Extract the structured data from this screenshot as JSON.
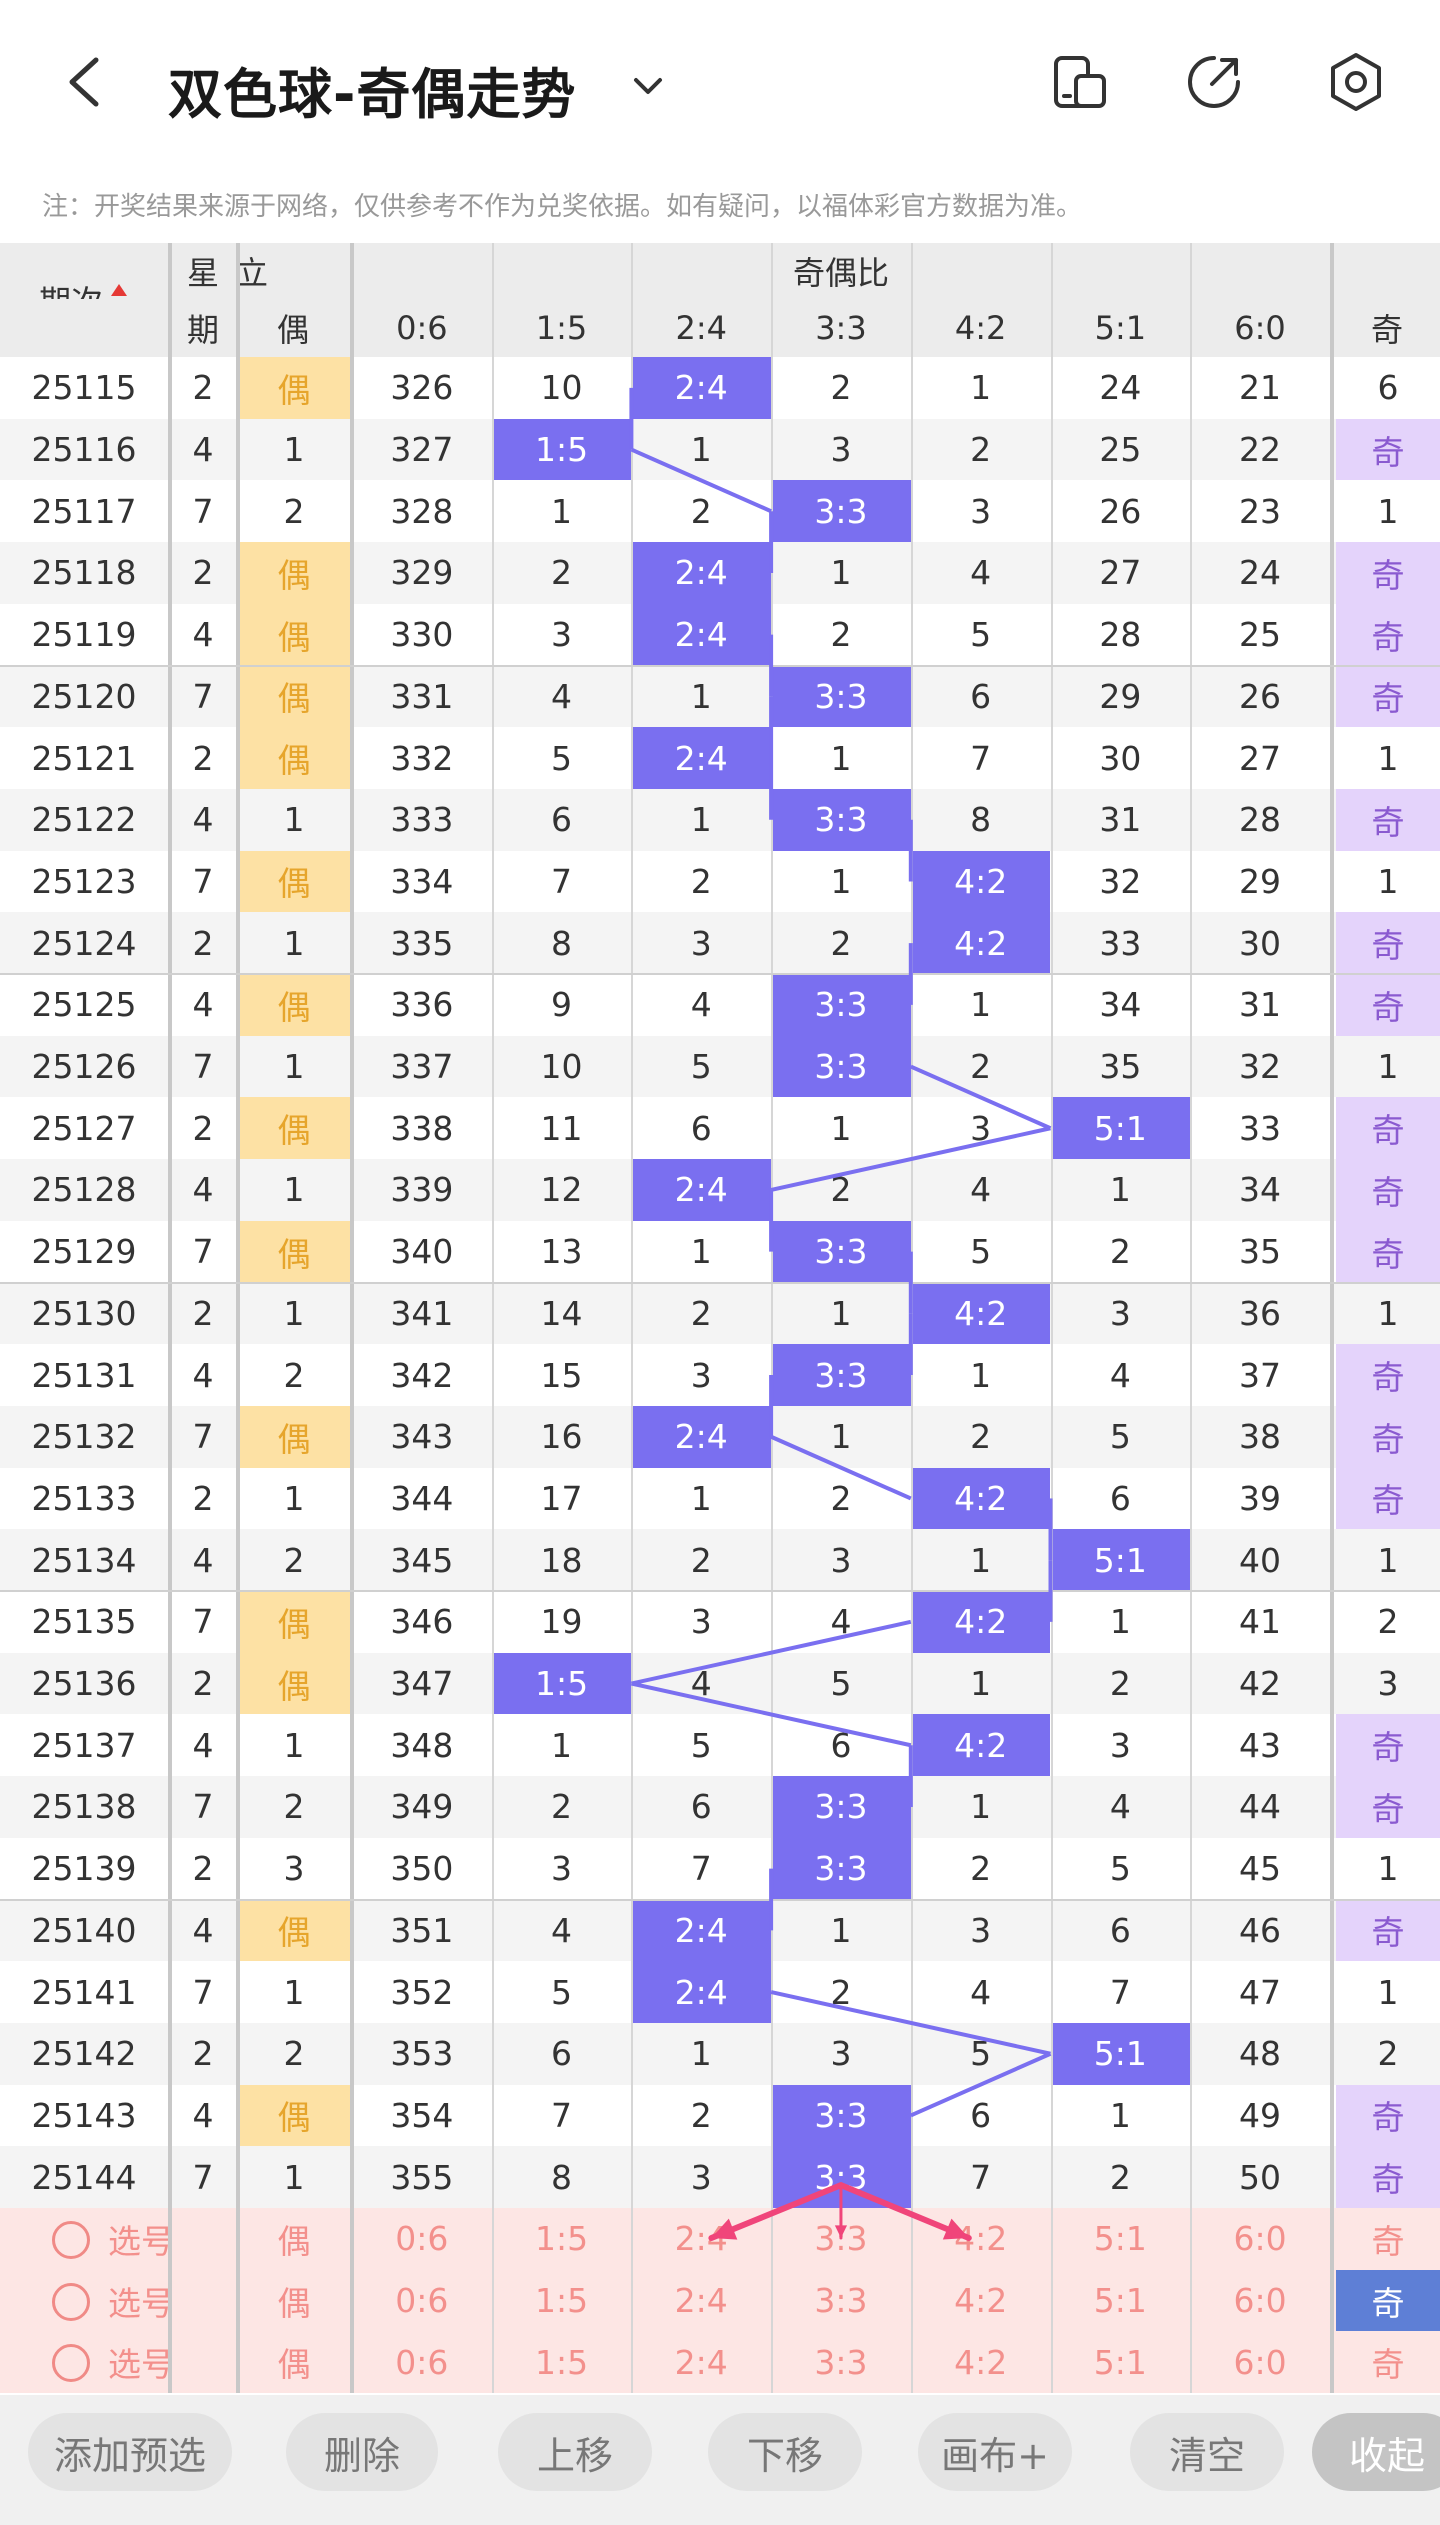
{
  "header": {
    "title": "双色球-奇偶走势",
    "note": "注：开奖结果来源于网络，仅供参考不作为兑奖依据。如有疑问，以福体彩官方数据为准。"
  },
  "columns": {
    "issue": "期次",
    "weekday_top": "星",
    "weekday_bottom": "期",
    "partial_top": "立",
    "ou": "偶",
    "ratio_group": "奇偶比",
    "ratios": [
      "0:6",
      "1:5",
      "2:4",
      "3:3",
      "4:2",
      "5:1",
      "6:0"
    ],
    "ji": "奇"
  },
  "colors": {
    "hit": "#7a6ff0",
    "ou_hit": "#fde1a4",
    "ji_hit": "#e4d3fb",
    "select_bg": "#fde6e4",
    "arrow": "#f0457a"
  },
  "rows": [
    {
      "issue": "25115",
      "wd": "2",
      "ou": "偶",
      "r": [
        "326",
        "10",
        "2:4",
        "2",
        "1",
        "24",
        "21"
      ],
      "ji": "6",
      "hit": 2,
      "ouHit": true,
      "jiHit": false
    },
    {
      "issue": "25116",
      "wd": "4",
      "ou": "1",
      "r": [
        "327",
        "1:5",
        "1",
        "3",
        "2",
        "25",
        "22"
      ],
      "ji": "奇",
      "hit": 1,
      "ouHit": false,
      "jiHit": true
    },
    {
      "issue": "25117",
      "wd": "7",
      "ou": "2",
      "r": [
        "328",
        "1",
        "2",
        "3:3",
        "3",
        "26",
        "23"
      ],
      "ji": "1",
      "hit": 3,
      "ouHit": false,
      "jiHit": false
    },
    {
      "issue": "25118",
      "wd": "2",
      "ou": "偶",
      "r": [
        "329",
        "2",
        "2:4",
        "1",
        "4",
        "27",
        "24"
      ],
      "ji": "奇",
      "hit": 2,
      "ouHit": true,
      "jiHit": true
    },
    {
      "issue": "25119",
      "wd": "4",
      "ou": "偶",
      "r": [
        "330",
        "3",
        "2:4",
        "2",
        "5",
        "28",
        "25"
      ],
      "ji": "奇",
      "hit": 2,
      "ouHit": true,
      "jiHit": true
    },
    {
      "issue": "25120",
      "wd": "7",
      "ou": "偶",
      "r": [
        "331",
        "4",
        "1",
        "3:3",
        "6",
        "29",
        "26"
      ],
      "ji": "奇",
      "hit": 3,
      "ouHit": true,
      "jiHit": true
    },
    {
      "issue": "25121",
      "wd": "2",
      "ou": "偶",
      "r": [
        "332",
        "5",
        "2:4",
        "1",
        "7",
        "30",
        "27"
      ],
      "ji": "1",
      "hit": 2,
      "ouHit": true,
      "jiHit": false
    },
    {
      "issue": "25122",
      "wd": "4",
      "ou": "1",
      "r": [
        "333",
        "6",
        "1",
        "3:3",
        "8",
        "31",
        "28"
      ],
      "ji": "奇",
      "hit": 3,
      "ouHit": false,
      "jiHit": true
    },
    {
      "issue": "25123",
      "wd": "7",
      "ou": "偶",
      "r": [
        "334",
        "7",
        "2",
        "1",
        "4:2",
        "32",
        "29"
      ],
      "ji": "1",
      "hit": 4,
      "ouHit": true,
      "jiHit": false
    },
    {
      "issue": "25124",
      "wd": "2",
      "ou": "1",
      "r": [
        "335",
        "8",
        "3",
        "2",
        "4:2",
        "33",
        "30"
      ],
      "ji": "奇",
      "hit": 4,
      "ouHit": false,
      "jiHit": true
    },
    {
      "issue": "25125",
      "wd": "4",
      "ou": "偶",
      "r": [
        "336",
        "9",
        "4",
        "3:3",
        "1",
        "34",
        "31"
      ],
      "ji": "奇",
      "hit": 3,
      "ouHit": true,
      "jiHit": true
    },
    {
      "issue": "25126",
      "wd": "7",
      "ou": "1",
      "r": [
        "337",
        "10",
        "5",
        "3:3",
        "2",
        "35",
        "32"
      ],
      "ji": "1",
      "hit": 3,
      "ouHit": false,
      "jiHit": false
    },
    {
      "issue": "25127",
      "wd": "2",
      "ou": "偶",
      "r": [
        "338",
        "11",
        "6",
        "1",
        "3",
        "5:1",
        "33"
      ],
      "ji": "奇",
      "hit": 5,
      "ouHit": true,
      "jiHit": true
    },
    {
      "issue": "25128",
      "wd": "4",
      "ou": "1",
      "r": [
        "339",
        "12",
        "2:4",
        "2",
        "4",
        "1",
        "34"
      ],
      "ji": "奇",
      "hit": 2,
      "ouHit": false,
      "jiHit": true
    },
    {
      "issue": "25129",
      "wd": "7",
      "ou": "偶",
      "r": [
        "340",
        "13",
        "1",
        "3:3",
        "5",
        "2",
        "35"
      ],
      "ji": "奇",
      "hit": 3,
      "ouHit": true,
      "jiHit": true
    },
    {
      "issue": "25130",
      "wd": "2",
      "ou": "1",
      "r": [
        "341",
        "14",
        "2",
        "1",
        "4:2",
        "3",
        "36"
      ],
      "ji": "1",
      "hit": 4,
      "ouHit": false,
      "jiHit": false
    },
    {
      "issue": "25131",
      "wd": "4",
      "ou": "2",
      "r": [
        "342",
        "15",
        "3",
        "3:3",
        "1",
        "4",
        "37"
      ],
      "ji": "奇",
      "hit": 3,
      "ouHit": false,
      "jiHit": true
    },
    {
      "issue": "25132",
      "wd": "7",
      "ou": "偶",
      "r": [
        "343",
        "16",
        "2:4",
        "1",
        "2",
        "5",
        "38"
      ],
      "ji": "奇",
      "hit": 2,
      "ouHit": true,
      "jiHit": true
    },
    {
      "issue": "25133",
      "wd": "2",
      "ou": "1",
      "r": [
        "344",
        "17",
        "1",
        "2",
        "4:2",
        "6",
        "39"
      ],
      "ji": "奇",
      "hit": 4,
      "ouHit": false,
      "jiHit": true
    },
    {
      "issue": "25134",
      "wd": "4",
      "ou": "2",
      "r": [
        "345",
        "18",
        "2",
        "3",
        "1",
        "5:1",
        "40"
      ],
      "ji": "1",
      "hit": 5,
      "ouHit": false,
      "jiHit": false
    },
    {
      "issue": "25135",
      "wd": "7",
      "ou": "偶",
      "r": [
        "346",
        "19",
        "3",
        "4",
        "4:2",
        "1",
        "41"
      ],
      "ji": "2",
      "hit": 4,
      "ouHit": true,
      "jiHit": false
    },
    {
      "issue": "25136",
      "wd": "2",
      "ou": "偶",
      "r": [
        "347",
        "1:5",
        "4",
        "5",
        "1",
        "2",
        "42"
      ],
      "ji": "3",
      "hit": 1,
      "ouHit": true,
      "jiHit": false
    },
    {
      "issue": "25137",
      "wd": "4",
      "ou": "1",
      "r": [
        "348",
        "1",
        "5",
        "6",
        "4:2",
        "3",
        "43"
      ],
      "ji": "奇",
      "hit": 4,
      "ouHit": false,
      "jiHit": true
    },
    {
      "issue": "25138",
      "wd": "7",
      "ou": "2",
      "r": [
        "349",
        "2",
        "6",
        "3:3",
        "1",
        "4",
        "44"
      ],
      "ji": "奇",
      "hit": 3,
      "ouHit": false,
      "jiHit": true
    },
    {
      "issue": "25139",
      "wd": "2",
      "ou": "3",
      "r": [
        "350",
        "3",
        "7",
        "3:3",
        "2",
        "5",
        "45"
      ],
      "ji": "1",
      "hit": 3,
      "ouHit": false,
      "jiHit": false
    },
    {
      "issue": "25140",
      "wd": "4",
      "ou": "偶",
      "r": [
        "351",
        "4",
        "2:4",
        "1",
        "3",
        "6",
        "46"
      ],
      "ji": "奇",
      "hit": 2,
      "ouHit": true,
      "jiHit": true
    },
    {
      "issue": "25141",
      "wd": "7",
      "ou": "1",
      "r": [
        "352",
        "5",
        "2:4",
        "2",
        "4",
        "7",
        "47"
      ],
      "ji": "1",
      "hit": 2,
      "ouHit": false,
      "jiHit": false
    },
    {
      "issue": "25142",
      "wd": "2",
      "ou": "2",
      "r": [
        "353",
        "6",
        "1",
        "3",
        "5",
        "5:1",
        "48"
      ],
      "ji": "2",
      "hit": 5,
      "ouHit": false,
      "jiHit": false
    },
    {
      "issue": "25143",
      "wd": "4",
      "ou": "偶",
      "r": [
        "354",
        "7",
        "2",
        "3:3",
        "6",
        "1",
        "49"
      ],
      "ji": "奇",
      "hit": 3,
      "ouHit": true,
      "jiHit": true
    },
    {
      "issue": "25144",
      "wd": "7",
      "ou": "1",
      "r": [
        "355",
        "8",
        "3",
        "3:3",
        "7",
        "2",
        "50"
      ],
      "ji": "奇",
      "hit": 3,
      "ouHit": false,
      "jiHit": true
    }
  ],
  "select_rows": [
    {
      "label": "选号",
      "ou": "偶",
      "r": [
        "0:6",
        "1:5",
        "2:4",
        "3:3",
        "4:2",
        "5:1",
        "6:0"
      ],
      "ji": "奇",
      "jiOn": false
    },
    {
      "label": "选号",
      "ou": "偶",
      "r": [
        "0:6",
        "1:5",
        "2:4",
        "3:3",
        "4:2",
        "5:1",
        "6:0"
      ],
      "ji": "奇",
      "jiOn": true
    },
    {
      "label": "选号",
      "ou": "偶",
      "r": [
        "0:6",
        "1:5",
        "2:4",
        "3:3",
        "4:2",
        "5:1",
        "6:0"
      ],
      "ji": "奇",
      "jiOn": false
    }
  ],
  "toolbar": {
    "add": "添加预选",
    "delete": "删除",
    "up": "上移",
    "down": "下移",
    "canvas": "画布+",
    "clear": "清空",
    "collapse": "收起"
  }
}
